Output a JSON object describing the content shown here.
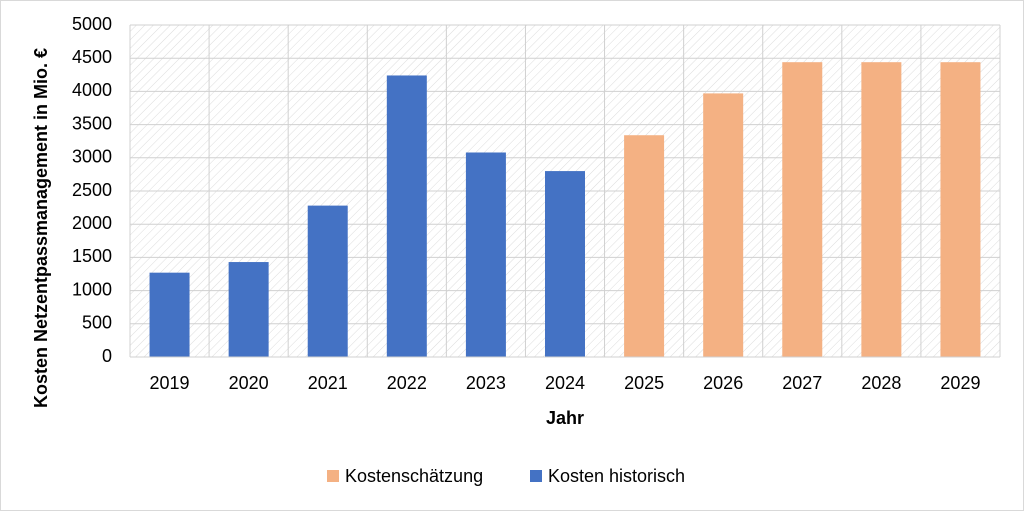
{
  "chart_data": {
    "type": "bar",
    "x_label": "Jahr",
    "y_label": "Kosten Netzentpassmanagement in Mio. €",
    "categories": [
      "2019",
      "2020",
      "2021",
      "2022",
      "2023",
      "2024",
      "2025",
      "2026",
      "2027",
      "2028",
      "2029"
    ],
    "series": [
      {
        "name": "Kostenschätzung",
        "color": "#f4b183",
        "values": [
          null,
          null,
          null,
          null,
          null,
          null,
          3340,
          3970,
          4440,
          4440,
          4440
        ]
      },
      {
        "name": "Kosten historisch",
        "color": "#4472c4",
        "values": [
          1270,
          1430,
          2280,
          4240,
          3080,
          2800,
          null,
          null,
          null,
          null,
          null
        ]
      }
    ],
    "ylim": [
      0,
      5000
    ],
    "yticks": [
      0,
      500,
      1000,
      1500,
      2000,
      2500,
      3000,
      3500,
      4000,
      4500,
      5000
    ],
    "grid": true,
    "legend": "bottom"
  }
}
